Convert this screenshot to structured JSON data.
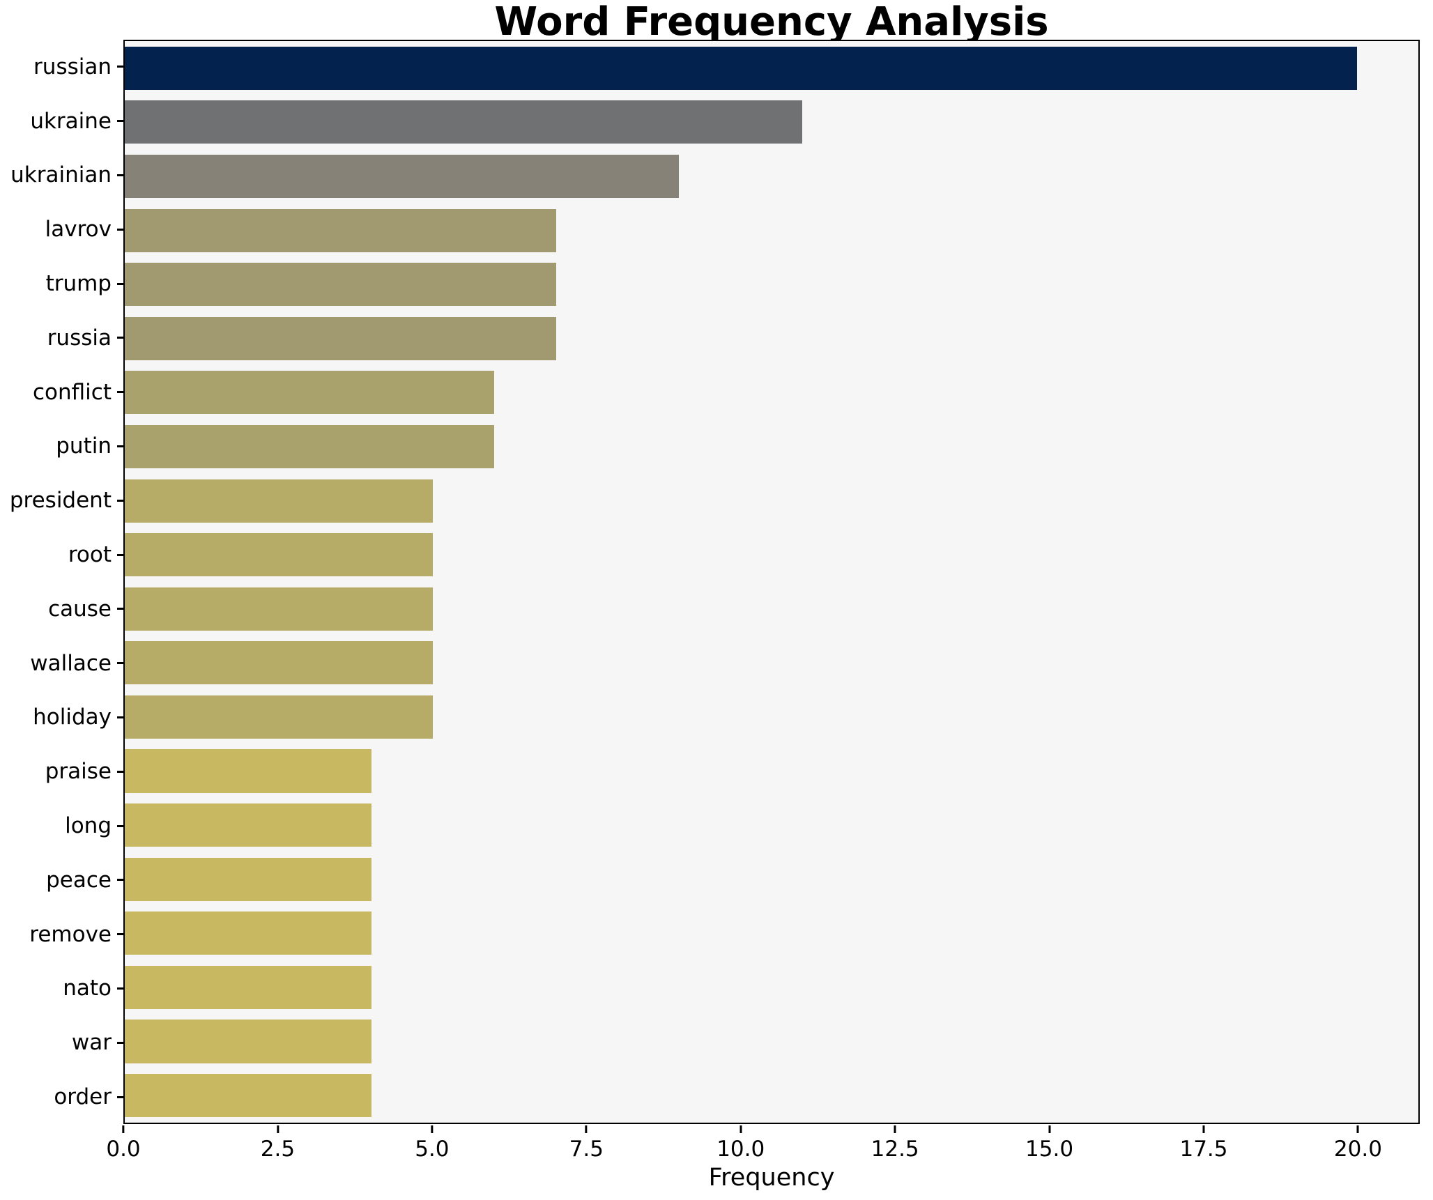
{
  "chart_data": {
    "type": "bar",
    "orientation": "horizontal",
    "title": "Word Frequency Analysis",
    "xlabel": "Frequency",
    "ylabel": "",
    "categories": [
      "russian",
      "ukraine",
      "ukrainian",
      "lavrov",
      "trump",
      "russia",
      "conflict",
      "putin",
      "president",
      "root",
      "cause",
      "wallace",
      "holiday",
      "praise",
      "long",
      "peace",
      "remove",
      "nato",
      "war",
      "order"
    ],
    "values": [
      20,
      11,
      9,
      7,
      7,
      7,
      6,
      6,
      5,
      5,
      5,
      5,
      5,
      4,
      4,
      4,
      4,
      4,
      4,
      4
    ],
    "bar_colors": [
      "#03224e",
      "#707173",
      "#878277",
      "#a19a71",
      "#a19a71",
      "#a19a71",
      "#aaa26c",
      "#aaa26c",
      "#b7ab68",
      "#b7ab68",
      "#b7ab68",
      "#b7ab68",
      "#b7ab68",
      "#c8b862",
      "#c8b862",
      "#c8b862",
      "#c8b862",
      "#c8b862",
      "#c8b862",
      "#c8b862"
    ],
    "xlim": [
      0,
      21
    ],
    "xticks": [
      0,
      2.5,
      5,
      7.5,
      10,
      12.5,
      15,
      17.5,
      20
    ],
    "xtick_labels": [
      "0.0",
      "2.5",
      "5.0",
      "7.5",
      "10.0",
      "12.5",
      "15.0",
      "17.5",
      "20.0"
    ],
    "grid": false,
    "legend": null,
    "plot_bg": "#f6f6f6",
    "figure_bg": "#ffffff",
    "bar_height_fraction": 0.8
  }
}
